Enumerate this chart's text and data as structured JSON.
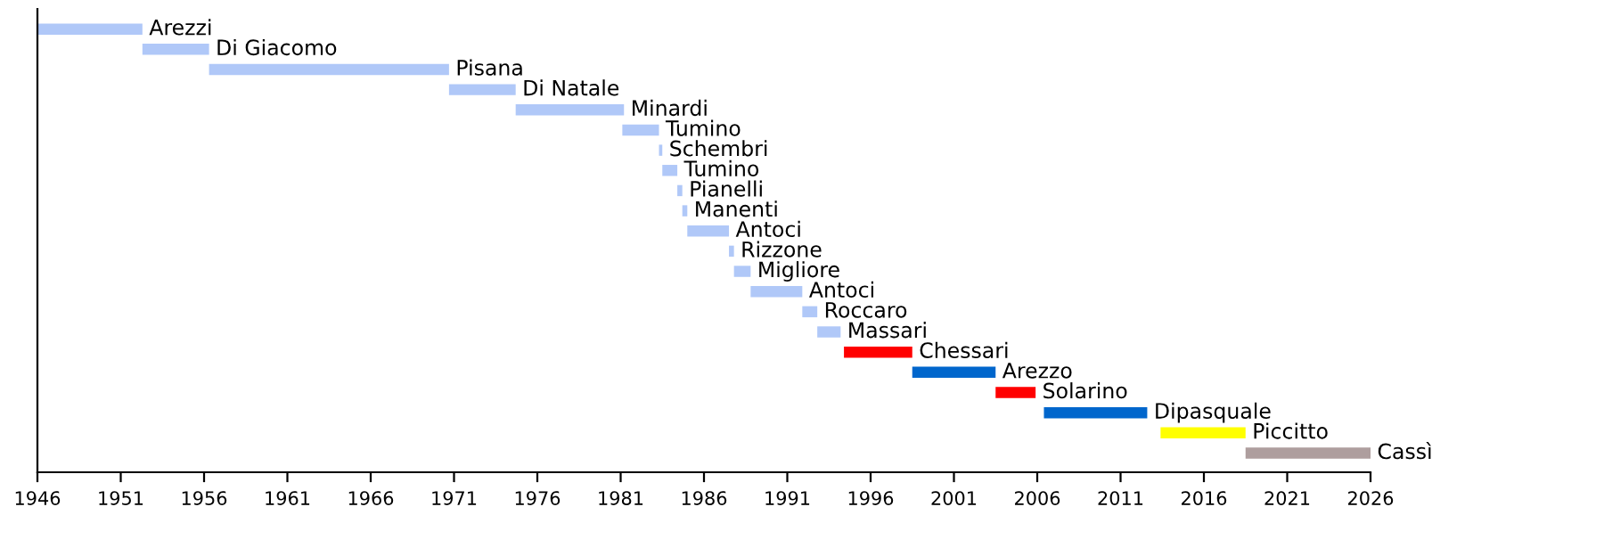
{
  "chart_data": {
    "type": "bar",
    "orientation": "horizontal",
    "categories": [
      "Arezzi",
      "Di Giacomo",
      "Pisana",
      "Di Natale",
      "Minardi",
      "Tumino",
      "Schembri",
      "Tumino",
      "Pianelli",
      "Manenti",
      "Antoci",
      "Rizzone",
      "Migliore",
      "Antoci",
      "Roccaro",
      "Massari",
      "Chessari",
      "Arezzo",
      "Solarino",
      "Dipasquale",
      "Piccitto",
      "Cassì"
    ],
    "base": [
      1946,
      1952.3,
      1956.3,
      1970.7,
      1974.7,
      1981.1,
      1983.3,
      1983.5,
      1984.4,
      1984.7,
      1985.0,
      1987.5,
      1987.8,
      1988.8,
      1991.9,
      1992.8,
      1994.4,
      1998.5,
      2003.5,
      2006.4,
      2013.4,
      2018.5
    ],
    "values": [
      6.3,
      4.0,
      14.4,
      4.0,
      6.5,
      2.2,
      0.2,
      0.9,
      0.3,
      0.3,
      2.5,
      0.3,
      1.0,
      3.1,
      0.9,
      1.4,
      4.1,
      5.0,
      2.4,
      6.2,
      5.1,
      7.5
    ],
    "colors": [
      "#b0c8f8",
      "#b0c8f8",
      "#b0c8f8",
      "#b0c8f8",
      "#b0c8f8",
      "#b0c8f8",
      "#b0c8f8",
      "#b0c8f8",
      "#b0c8f8",
      "#b0c8f8",
      "#b0c8f8",
      "#b0c8f8",
      "#b0c8f8",
      "#b0c8f8",
      "#b0c8f8",
      "#b0c8f8",
      "#ff0000",
      "#0066cc",
      "#ff0000",
      "#0066cc",
      "#ffff00",
      "#ae9e9e"
    ],
    "xlim": [
      1946,
      2026
    ],
    "xticks": [
      1946,
      1951,
      1956,
      1961,
      1966,
      1971,
      1976,
      1981,
      1986,
      1991,
      1996,
      2001,
      2006,
      2011,
      2016,
      2021,
      2026
    ],
    "tick_labels": "x",
    "grid": false,
    "legend": false
  }
}
